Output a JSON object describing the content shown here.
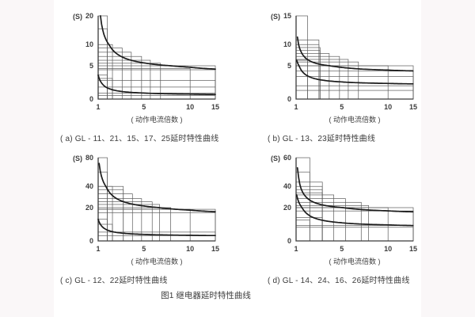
{
  "page": {
    "figure_caption": "图1  继电器延时特性曲线",
    "background_color": "#faf7f8",
    "panel_color": "#ffffff",
    "grid_line_color": "#5b5b5b",
    "axis_color": "#3a3a3a",
    "curve_color": "#1c1c1c",
    "text_color": "#3d3d3d"
  },
  "chart_data": [
    {
      "type": "line",
      "id": "a",
      "caption": "( a) GL - 11、21、15、17、25延时特性曲线",
      "ylabel": "(S)",
      "xlabel": "( 动作电流倍数 )",
      "xticks": [
        1,
        5,
        10,
        15
      ],
      "yticks": [
        0,
        5,
        10,
        20
      ],
      "xlim": [
        1,
        15
      ],
      "ylim": [
        0,
        20
      ],
      "series": [
        {
          "name": "upper-limit-curve",
          "start": [
            1.2,
            20
          ],
          "asymptote": 4.0,
          "approx_points": [
            [
              1.2,
              20
            ],
            [
              2,
              9.8
            ],
            [
              3,
              7.2
            ],
            [
              5,
              5.7
            ],
            [
              10,
              4.8
            ],
            [
              15,
              4.5
            ]
          ]
        },
        {
          "name": "lower-limit-curve",
          "start": [
            1.0,
            3.6
          ],
          "asymptote": 0.6,
          "approx_points": [
            [
              1,
              3.6
            ],
            [
              2,
              1.5
            ],
            [
              3,
              1.1
            ],
            [
              5,
              0.9
            ],
            [
              10,
              0.75
            ],
            [
              15,
              0.7
            ]
          ]
        }
      ],
      "step_boxes": [
        [
          1.8,
          20
        ],
        [
          1.8,
          15.5
        ],
        [
          2.25,
          10
        ],
        [
          3.1,
          9.2
        ],
        [
          3.9,
          8.2
        ],
        [
          4.8,
          7.2
        ],
        [
          5.7,
          6.3
        ],
        [
          6.8,
          5.6
        ],
        [
          10,
          4.6
        ],
        [
          15,
          4.4
        ],
        [
          15,
          5.0
        ],
        [
          1.8,
          3.6
        ],
        [
          2.25,
          3.1
        ],
        [
          15,
          2.8
        ],
        [
          15,
          1.8
        ],
        [
          15,
          0.9
        ],
        [
          15,
          0.55
        ]
      ]
    },
    {
      "type": "line",
      "id": "b",
      "caption": "( b) GL - 13、23延时特性曲线",
      "ylabel": "(S)",
      "xlabel": "( 动作电流倍数 )",
      "xticks": [
        1,
        5,
        10,
        15
      ],
      "yticks": [
        0,
        5,
        10,
        15
      ],
      "xlim": [
        1,
        15
      ],
      "ylim": [
        0,
        15
      ],
      "series": [
        {
          "name": "upper-limit-curve",
          "start": [
            1.12,
            11.3
          ],
          "asymptote": 4.0,
          "approx_points": [
            [
              1.12,
              11.3
            ],
            [
              2,
              6.5
            ],
            [
              3,
              5.4
            ],
            [
              5,
              4.8
            ],
            [
              10,
              4.35
            ],
            [
              15,
              4.2
            ]
          ]
        },
        {
          "name": "lower-limit-curve",
          "start": [
            1.05,
            6.3
          ],
          "asymptote": 2.15,
          "approx_points": [
            [
              1.05,
              6.3
            ],
            [
              2,
              3.5
            ],
            [
              3,
              2.9
            ],
            [
              5,
              2.6
            ],
            [
              10,
              2.35
            ],
            [
              15,
              2.3
            ]
          ]
        }
      ],
      "step_boxes": [
        [
          2.0,
          15
        ],
        [
          3.0,
          10.8
        ],
        [
          3.0,
          10.0
        ],
        [
          3.1,
          9.3
        ],
        [
          3.1,
          8.6
        ],
        [
          3.9,
          7.9
        ],
        [
          4.8,
          7.2
        ],
        [
          5.7,
          6.5
        ],
        [
          6.8,
          5.9
        ],
        [
          10,
          5.0
        ],
        [
          15,
          5.0
        ],
        [
          15,
          4.2
        ],
        [
          2.0,
          6.3
        ],
        [
          15,
          3.4
        ],
        [
          15,
          2.0
        ],
        [
          15,
          1.3
        ]
      ]
    },
    {
      "type": "line",
      "id": "c",
      "caption": "( c) GL - 12、22延时特性曲线",
      "ylabel": "(S)",
      "xlabel": "( 动作电流倍数 )",
      "xticks": [
        1,
        5,
        10,
        15
      ],
      "yticks": [
        0,
        20,
        40,
        80
      ],
      "xlim": [
        1,
        15
      ],
      "ylim": [
        0,
        80
      ],
      "series": [
        {
          "name": "upper-limit-curve",
          "start": [
            1.08,
            72
          ],
          "asymptote": 15.8,
          "approx_points": [
            [
              1.08,
              72
            ],
            [
              2,
              34.3
            ],
            [
              3,
              26.5
            ],
            [
              5,
              21.6
            ],
            [
              10,
              18.5
            ],
            [
              15,
              17.6
            ]
          ]
        },
        {
          "name": "lower-limit-curve",
          "start": [
            1.0,
            13
          ],
          "asymptote": 2.9,
          "approx_points": [
            [
              1,
              13
            ],
            [
              2,
              6.0
            ],
            [
              3,
              4.7
            ],
            [
              5,
              3.9
            ],
            [
              10,
              3.4
            ],
            [
              15,
              3.2
            ]
          ]
        }
      ],
      "step_boxes": [
        [
          1.8,
          80
        ],
        [
          1.8,
          60
        ],
        [
          2.25,
          40
        ],
        [
          3.2,
          40
        ],
        [
          3.2,
          37
        ],
        [
          4.0,
          33
        ],
        [
          4.8,
          28.5
        ],
        [
          5.9,
          25.5
        ],
        [
          6.7,
          23
        ],
        [
          7.9,
          20
        ],
        [
          10,
          19
        ],
        [
          15,
          19
        ],
        [
          15,
          17
        ],
        [
          1.8,
          13
        ],
        [
          2.25,
          10
        ],
        [
          15,
          5.3
        ],
        [
          15,
          3.2
        ]
      ]
    },
    {
      "type": "line",
      "id": "d",
      "caption": "( d) GL - 14、24、16、26延时特性曲线",
      "ylabel": "(S)",
      "xlabel": "( 动作电流倍数 )",
      "xticks": [
        1,
        5,
        10,
        15
      ],
      "yticks": [
        0,
        20,
        40,
        60
      ],
      "xlim": [
        1,
        15
      ],
      "ylim": [
        0,
        60
      ],
      "series": [
        {
          "name": "upper-limit-curve",
          "start": [
            1.12,
            53
          ],
          "asymptote": 16.3,
          "approx_points": [
            [
              1.12,
              53
            ],
            [
              2,
              28.7
            ],
            [
              3,
              23.4
            ],
            [
              5,
              20.1
            ],
            [
              10,
              18.1
            ],
            [
              15,
              17.4
            ]
          ]
        },
        {
          "name": "lower-limit-curve",
          "start": [
            1.05,
            32
          ],
          "asymptote": 8.5,
          "approx_points": [
            [
              1.05,
              32
            ],
            [
              2,
              16.1
            ],
            [
              3,
              12.9
            ],
            [
              5,
              10.9
            ],
            [
              10,
              9.6
            ],
            [
              15,
              9.2
            ]
          ]
        }
      ],
      "step_boxes": [
        [
          2.2,
          60
        ],
        [
          2.2,
          50
        ],
        [
          3.3,
          43
        ],
        [
          3.3,
          40
        ],
        [
          3.3,
          37
        ],
        [
          3.3,
          34
        ],
        [
          4.3,
          32
        ],
        [
          5.4,
          28.5
        ],
        [
          7.1,
          25
        ],
        [
          7.9,
          22
        ],
        [
          10,
          20
        ],
        [
          15,
          20
        ],
        [
          15,
          18
        ],
        [
          3.3,
          14
        ],
        [
          2.2,
          12.5
        ],
        [
          15,
          9.3
        ],
        [
          15,
          8.2
        ]
      ]
    }
  ]
}
